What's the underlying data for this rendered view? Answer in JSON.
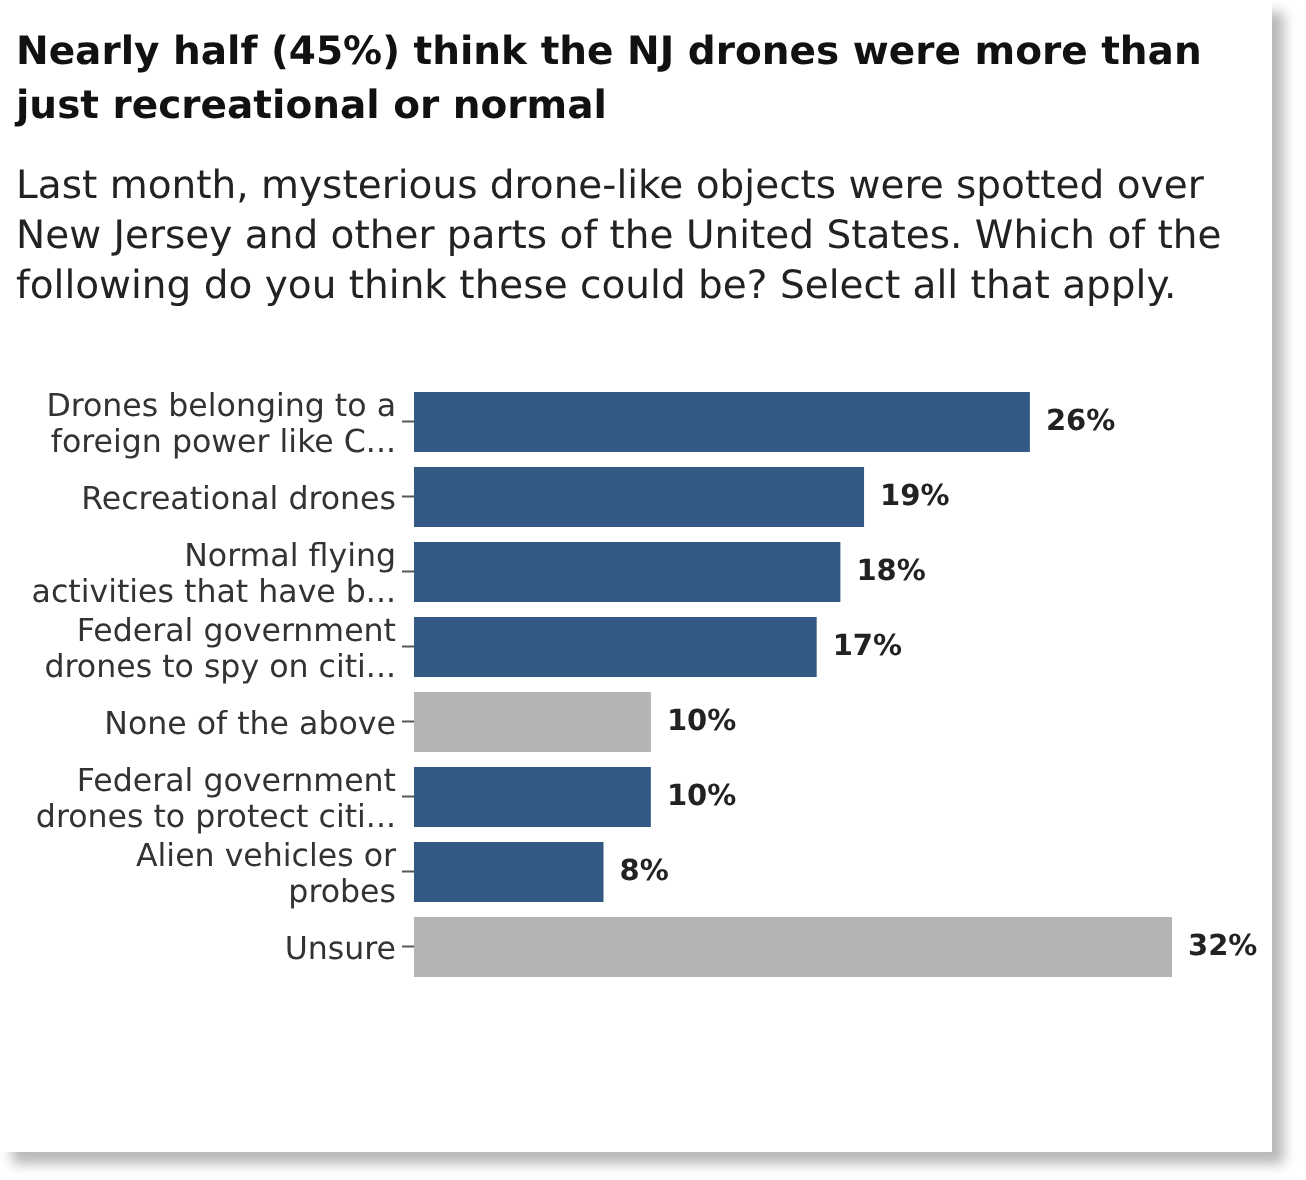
{
  "chart_data": {
    "type": "bar",
    "orientation": "horizontal",
    "title": "Nearly half (45%) think the NJ drones were more than just recreational or normal",
    "subtitle": "Last month, mysterious drone-like objects were spotted over New Jersey and other parts of the United States. Which of the following do you think these could be? Select all that apply.",
    "categories": [
      "Drones belonging to a\nforeign power like C...",
      "Recreational drones",
      "Normal flying\nactivities that have b...",
      "Federal government\ndrones to spy on citi...",
      "None of the above",
      "Federal government\ndrones to protect citi...",
      "Alien vehicles or\nprobes",
      "Unsure"
    ],
    "values": [
      26,
      19,
      18,
      17,
      10,
      10,
      8,
      32
    ],
    "colors": [
      "#335a84",
      "#335a84",
      "#335a84",
      "#335a84",
      "#b4b4b4",
      "#335a84",
      "#335a84",
      "#b4b4b4"
    ],
    "value_labels": [
      "26%",
      "19%",
      "18%",
      "17%",
      "10%",
      "10%",
      "8%",
      "32%"
    ]
  }
}
